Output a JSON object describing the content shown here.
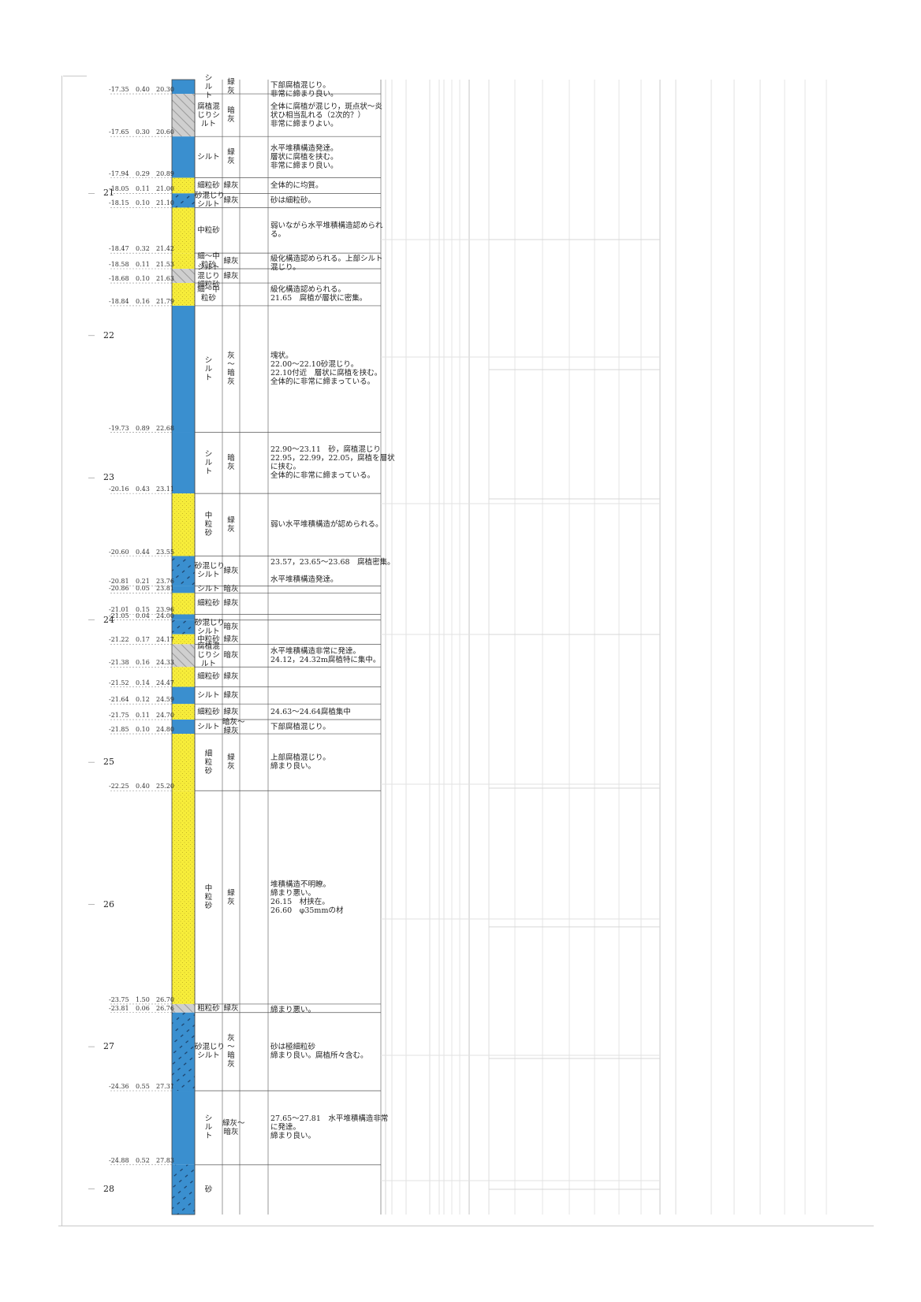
{
  "colors": {
    "silt": "#3a8fcf",
    "sand": "#f7ed3a",
    "organic": "#c8c8c8",
    "grid_line": "#bfbfbf",
    "layer_line": "#555555"
  },
  "scale": {
    "top_depth": 20.2,
    "bottom_depth": 28.18
  },
  "depth_markers": [
    {
      "label": "21",
      "depth": 21.0
    },
    {
      "label": "22",
      "depth": 22.0
    },
    {
      "label": "23",
      "depth": 23.0
    },
    {
      "label": "24",
      "depth": 24.0
    },
    {
      "label": "25",
      "depth": 25.0
    },
    {
      "label": "26",
      "depth": 26.0
    },
    {
      "label": "27",
      "depth": 27.0
    },
    {
      "label": "28",
      "depth": 28.0
    }
  ],
  "boundaries": [
    {
      "depth": 20.3,
      "elevation": "-17.35",
      "thickness": "0.40",
      "depth_label": "20.30"
    },
    {
      "depth": 20.6,
      "elevation": "-17.65",
      "thickness": "0.30",
      "depth_label": "20.60"
    },
    {
      "depth": 20.89,
      "elevation": "-17.94",
      "thickness": "0.29",
      "depth_label": "20.89"
    },
    {
      "depth": 21.0,
      "elevation": "-18.05",
      "thickness": "0.11",
      "depth_label": "21.00"
    },
    {
      "depth": 21.1,
      "elevation": "-18.15",
      "thickness": "0.10",
      "depth_label": "21.10"
    },
    {
      "depth": 21.42,
      "elevation": "-18.47",
      "thickness": "0.32",
      "depth_label": "21.42"
    },
    {
      "depth": 21.53,
      "elevation": "-18.58",
      "thickness": "0.11",
      "depth_label": "21.53"
    },
    {
      "depth": 21.63,
      "elevation": "-18.68",
      "thickness": "0.10",
      "depth_label": "21.63"
    },
    {
      "depth": 21.79,
      "elevation": "-18.84",
      "thickness": "0.16",
      "depth_label": "21.79"
    },
    {
      "depth": 22.68,
      "elevation": "-19.73",
      "thickness": "0.89",
      "depth_label": "22.68"
    },
    {
      "depth": 23.11,
      "elevation": "-20.16",
      "thickness": "0.43",
      "depth_label": "23.11"
    },
    {
      "depth": 23.55,
      "elevation": "-20.60",
      "thickness": "0.44",
      "depth_label": "23.55"
    },
    {
      "depth": 23.76,
      "elevation": "-20.81",
      "thickness": "0.21",
      "depth_label": "23.76"
    },
    {
      "depth": 23.81,
      "elevation": "-20.86",
      "thickness": "0.05",
      "depth_label": "23.81"
    },
    {
      "depth": 23.96,
      "elevation": "-21.01",
      "thickness": "0.15",
      "depth_label": "23.96"
    },
    {
      "depth": 24.0,
      "elevation": "-21.05",
      "thickness": "0.04",
      "depth_label": "24.00"
    },
    {
      "depth": 24.17,
      "elevation": "-21.22",
      "thickness": "0.17",
      "depth_label": "24.17"
    },
    {
      "depth": 24.33,
      "elevation": "-21.38",
      "thickness": "0.16",
      "depth_label": "24.33"
    },
    {
      "depth": 24.47,
      "elevation": "-21.52",
      "thickness": "0.14",
      "depth_label": "24.47"
    },
    {
      "depth": 24.59,
      "elevation": "-21.64",
      "thickness": "0.12",
      "depth_label": "24.59"
    },
    {
      "depth": 24.7,
      "elevation": "-21.75",
      "thickness": "0.11",
      "depth_label": "24.70"
    },
    {
      "depth": 24.8,
      "elevation": "-21.85",
      "thickness": "0.10",
      "depth_label": "24.80"
    },
    {
      "depth": 25.2,
      "elevation": "-22.25",
      "thickness": "0.40",
      "depth_label": "25.20"
    },
    {
      "depth": 26.7,
      "elevation": "-23.75",
      "thickness": "1.50",
      "depth_label": "26.70"
    },
    {
      "depth": 26.76,
      "elevation": "-23.81",
      "thickness": "0.06",
      "depth_label": "26.76"
    },
    {
      "depth": 27.31,
      "elevation": "-24.36",
      "thickness": "0.55",
      "depth_label": "27.31"
    },
    {
      "depth": 27.83,
      "elevation": "-24.88",
      "thickness": "0.52",
      "depth_label": "27.83"
    }
  ],
  "layers": [
    {
      "top": 20.2,
      "bottom": 20.3,
      "pattern": "silt",
      "soil": "シ\nル\nト",
      "color": "緑\n灰",
      "desc": "下部腐植混じり。\n非常に締まり良い。"
    },
    {
      "top": 20.3,
      "bottom": 20.6,
      "pattern": "organic",
      "soil": "腐植混\nじりシ\nルト",
      "color": "暗\n灰",
      "desc": "全体に腐植が混じり，斑点状～炎\n状ひ相当乱れる（2次的？）\n非常に締まりよい。"
    },
    {
      "top": 20.6,
      "bottom": 20.89,
      "pattern": "silt",
      "soil": "シルト",
      "color": "緑\n灰",
      "desc": "水平堆積構造発達。\n層状に腐植を挟む。\n非常に締まり良い。"
    },
    {
      "top": 20.89,
      "bottom": 21.0,
      "pattern": "sand",
      "soil": "細粒砂",
      "color": "緑灰",
      "desc": "全体的に均質。"
    },
    {
      "top": 21.0,
      "bottom": 21.1,
      "pattern": "sandysilt",
      "soil": "砂混じり\nシルト",
      "color": "緑灰",
      "desc": "砂は細粒砂。"
    },
    {
      "top": 21.1,
      "bottom": 21.42,
      "pattern": "sand",
      "soil": "中粒砂",
      "color": "",
      "desc": "弱いながら水平堆積構造認められ\nる。"
    },
    {
      "top": 21.42,
      "bottom": 21.53,
      "pattern": "sand",
      "soil": "細～中\n粒砂",
      "color": "緑灰",
      "desc": "級化構造認められる。上部シルト\n混じり。"
    },
    {
      "top": 21.53,
      "bottom": 21.63,
      "pattern": "organic",
      "soil": "シルト\n混じり\n細粒砂",
      "color": "緑灰",
      "desc": ""
    },
    {
      "top": 21.63,
      "bottom": 21.79,
      "pattern": "sand",
      "soil": "細～中\n粒砂",
      "color": "",
      "desc": "級化構造認められる。\n21.65　腐植が層状に密集。"
    },
    {
      "top": 21.79,
      "bottom": 22.68,
      "pattern": "silt",
      "soil": "シ\nル\nト",
      "color": "灰\n〜\n暗\n灰",
      "desc": "塊状。\n22.00～22.10砂混じり。\n22.10付近　層状に腐植を挟む。\n全体的に非常に締まっている。"
    },
    {
      "top": 22.68,
      "bottom": 23.11,
      "pattern": "silt",
      "soil": "シ\nル\nト",
      "color": "暗\n灰",
      "desc": "22.90～23.11　砂，腐植混じり\n22.95，22.99，22.05，腐植を層状\nに挟む。\n全体的に非常に締まっている。"
    },
    {
      "top": 23.11,
      "bottom": 23.55,
      "pattern": "sand",
      "soil": "中\n粒\n砂",
      "color": "緑\n灰",
      "desc": "弱い水平堆積構造が認められる。"
    },
    {
      "top": 23.55,
      "bottom": 23.76,
      "pattern": "sandysilt",
      "soil": "砂混じり\nシルト",
      "color": "緑灰",
      "desc": "23.57，23.65～23.68　腐植密集。\n\n水平堆積構造発達。"
    },
    {
      "top": 23.76,
      "bottom": 23.81,
      "pattern": "silt",
      "soil": "シルト",
      "color": "暗灰",
      "desc": ""
    },
    {
      "top": 23.81,
      "bottom": 23.96,
      "pattern": "sand",
      "soil": "細粒砂",
      "color": "緑灰",
      "desc": ""
    },
    {
      "top": 23.96,
      "bottom": 24.0,
      "pattern": "silt",
      "soil": "",
      "color": "",
      "desc": ""
    },
    {
      "top": 24.0,
      "bottom": 24.1,
      "pattern": "sandysilt",
      "soil": "砂混じり\nシルト",
      "color": "暗灰",
      "desc": ""
    },
    {
      "top": 24.1,
      "bottom": 24.17,
      "pattern": "sand",
      "soil": "中粒砂",
      "color": "緑灰",
      "desc": ""
    },
    {
      "top": 24.17,
      "bottom": 24.33,
      "pattern": "organic",
      "soil": "腐植混\nじりシ\nルト",
      "color": "暗灰",
      "desc": "水平堆積構造非常に発達。\n24.12，24.32m腐植特に集中。"
    },
    {
      "top": 24.33,
      "bottom": 24.47,
      "pattern": "sand",
      "soil": "細粒砂",
      "color": "緑灰",
      "desc": ""
    },
    {
      "top": 24.47,
      "bottom": 24.59,
      "pattern": "silt",
      "soil": "シルト",
      "color": "緑灰",
      "desc": ""
    },
    {
      "top": 24.59,
      "bottom": 24.7,
      "pattern": "sand",
      "soil": "細粒砂",
      "color": "緑灰",
      "desc": "24.63～24.64腐植集中"
    },
    {
      "top": 24.7,
      "bottom": 24.8,
      "pattern": "silt",
      "soil": "シルト",
      "color": "暗灰～\n緑灰",
      "desc": "下部腐植混じり。"
    },
    {
      "top": 24.8,
      "bottom": 25.2,
      "pattern": "sand",
      "soil": "細\n粒\n砂",
      "color": "緑\n灰",
      "desc": "上部腐植混じり。\n締まり良い。"
    },
    {
      "top": 25.2,
      "bottom": 26.7,
      "pattern": "sand",
      "soil": "中\n粒\n砂",
      "color": "緑\n灰",
      "desc": "堆積構造不明瞭。\n締まり悪い。\n26.15　材挟在。\n26.60　φ35mmの材"
    },
    {
      "top": 26.7,
      "bottom": 26.76,
      "pattern": "organic",
      "soil": "粗粒砂",
      "color": "緑灰",
      "desc": "締まり悪い。"
    },
    {
      "top": 26.76,
      "bottom": 27.31,
      "pattern": "sandysilt",
      "soil": "砂混じり\nシルト",
      "color": "灰\n〜\n暗\n灰",
      "desc": "砂は極細粒砂\n締まり良い。腐植所々含む。"
    },
    {
      "top": 27.31,
      "bottom": 27.83,
      "pattern": "silt",
      "soil": "シ\nル\nト",
      "color": "緑灰～\n暗灰",
      "desc": "27.65～27.81　水平堆積構造非常\nに発達。\n締まり良い。"
    },
    {
      "top": 27.83,
      "bottom": 28.18,
      "pattern": "sandysilt",
      "soil": "砂",
      "color": "",
      "desc": ""
    }
  ]
}
